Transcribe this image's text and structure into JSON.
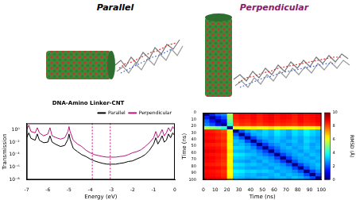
{
  "panels": {
    "left_title": "Parallel",
    "right_title": "Perpendicular"
  },
  "chart_data": [
    {
      "type": "line",
      "title": "DNA-Amino Linker-CNT",
      "x_label": "Energy (eV)",
      "y_label": "Transmission",
      "x": [
        -7,
        -6.9,
        -6.8,
        -6.6,
        -6.5,
        -6.4,
        -6.2,
        -6.0,
        -5.9,
        -5.8,
        -5.6,
        -5.4,
        -5.2,
        -5.05,
        -5.0,
        -4.95,
        -4.8,
        -4.6,
        -4.4,
        -4.2,
        -4.0,
        -3.8,
        -3.6,
        -3.4,
        -3.2,
        -3.0,
        -2.8,
        -2.6,
        -2.4,
        -2.2,
        -2.0,
        -1.8,
        -1.6,
        -1.4,
        -1.2,
        -1.0,
        -0.9,
        -0.8,
        -0.7,
        -0.6,
        -0.5,
        -0.4,
        -0.3,
        -0.2,
        -0.1,
        0
      ],
      "series": [
        {
          "name": "Parallel",
          "color": "#000000",
          "values": [
            0.05,
            0.3,
            0.04,
            0.02,
            0.2,
            0.02,
            0.008,
            0.01,
            0.1,
            0.01,
            0.004,
            0.002,
            0.003,
            0.03,
            0.2,
            0.03,
            0.001,
            0.0003,
            0.0001,
            5e-05,
            2e-05,
            1e-05,
            6e-06,
            4e-06,
            3e-06,
            3e-06,
            3e-06,
            4e-06,
            5e-06,
            8e-06,
            1e-05,
            2e-05,
            4e-05,
            0.0001,
            0.0005,
            0.005,
            0.05,
            0.005,
            0.02,
            0.1,
            0.01,
            0.02,
            0.2,
            0.05,
            0.3,
            0.1
          ]
        },
        {
          "name": "Perpendicular",
          "color": "#b5177a",
          "values": [
            1,
            5,
            0.5,
            0.3,
            2,
            0.3,
            0.1,
            0.2,
            2,
            0.1,
            0.05,
            0.03,
            0.05,
            0.5,
            3,
            0.5,
            0.02,
            0.005,
            0.002,
            0.0005,
            0.0002,
            0.0001,
            7e-05,
            5e-05,
            4e-05,
            4e-05,
            4e-05,
            5e-05,
            6e-05,
            0.0001,
            0.0002,
            0.0003,
            0.0006,
            0.002,
            0.008,
            0.05,
            0.5,
            0.05,
            0.2,
            1,
            0.1,
            0.3,
            2,
            0.5,
            3,
            1
          ]
        }
      ],
      "xlim": [
        -7,
        0
      ],
      "xticks": [
        -7,
        -6,
        -5,
        -4,
        -3,
        -2,
        -1,
        0
      ],
      "ylim": [
        1e-08,
        10
      ],
      "yticks": [
        {
          "value": 1e-08,
          "label": "10⁻⁸"
        },
        {
          "value": 1e-06,
          "label": "10⁻⁶"
        },
        {
          "value": 0.0001,
          "label": "10⁻⁴"
        },
        {
          "value": 0.01,
          "label": "10⁻²"
        },
        {
          "value": 1,
          "label": "10⁰"
        }
      ],
      "log": "y",
      "grid": false,
      "legend": "upper right",
      "vlines": [
        -3.9,
        -3.05
      ]
    },
    {
      "type": "heatmap",
      "x_label": "Time (ns)",
      "y_label": "Time (ns)",
      "x_bins": [
        0,
        5,
        10,
        15,
        20,
        25,
        30,
        35,
        40,
        45,
        50,
        55,
        60,
        65,
        70,
        75,
        80,
        85,
        90,
        95,
        100
      ],
      "y_bins": [
        0,
        5,
        10,
        15,
        20,
        25,
        30,
        35,
        40,
        45,
        50,
        55,
        60,
        65,
        70,
        75,
        80,
        85,
        90,
        95,
        100
      ],
      "cells": [
        [
          0,
          1.5,
          2.2,
          2.5,
          5.5,
          8.6,
          8.8,
          8.7,
          8.9,
          8.6,
          8.8,
          9.0,
          8.7,
          8.9,
          8.8,
          8.6,
          8.9,
          8.7,
          8.8,
          9.0
        ],
        [
          1.5,
          0,
          1.4,
          2.0,
          5.2,
          8.5,
          8.7,
          8.6,
          8.8,
          8.5,
          8.7,
          8.9,
          8.6,
          8.8,
          8.7,
          8.5,
          8.8,
          8.6,
          8.7,
          8.9
        ],
        [
          2.2,
          1.4,
          0,
          1.3,
          4.8,
          8.3,
          8.5,
          8.4,
          8.6,
          8.4,
          8.6,
          8.7,
          8.5,
          8.6,
          8.5,
          8.4,
          8.7,
          8.5,
          8.6,
          8.8
        ],
        [
          2.5,
          2.0,
          1.3,
          0,
          4.2,
          8.0,
          8.3,
          8.2,
          8.4,
          8.2,
          8.4,
          8.5,
          8.3,
          8.4,
          8.3,
          8.2,
          8.5,
          8.3,
          8.4,
          8.6
        ],
        [
          5.5,
          5.2,
          4.8,
          4.2,
          0,
          6.0,
          6.3,
          6.2,
          6.4,
          6.1,
          6.3,
          6.5,
          6.2,
          6.4,
          6.3,
          6.1,
          6.4,
          6.2,
          6.3,
          6.5
        ],
        [
          8.6,
          8.5,
          8.3,
          8.0,
          6.0,
          0,
          2.1,
          2.8,
          3.2,
          3.0,
          3.4,
          3.1,
          3.6,
          3.3,
          3.0,
          3.5,
          3.2,
          3.7,
          3.4,
          3.1
        ],
        [
          8.8,
          8.7,
          8.5,
          8.3,
          6.3,
          2.1,
          0,
          2.0,
          2.9,
          3.1,
          3.3,
          3.0,
          3.5,
          3.2,
          2.9,
          3.4,
          3.1,
          3.6,
          3.3,
          3.0
        ],
        [
          8.7,
          8.6,
          8.4,
          8.2,
          6.2,
          2.8,
          2.0,
          0,
          1.9,
          2.7,
          3.0,
          2.8,
          3.2,
          3.0,
          2.7,
          3.1,
          2.9,
          3.3,
          3.0,
          2.8
        ],
        [
          8.9,
          8.8,
          8.6,
          8.4,
          6.4,
          3.2,
          2.9,
          1.9,
          0,
          2.0,
          2.6,
          2.9,
          3.1,
          2.8,
          3.0,
          3.2,
          2.8,
          3.4,
          3.1,
          2.9
        ],
        [
          8.6,
          8.5,
          8.4,
          8.2,
          6.1,
          3.0,
          3.1,
          2.7,
          2.0,
          0,
          1.8,
          2.5,
          2.8,
          3.0,
          2.7,
          3.0,
          2.9,
          3.2,
          2.8,
          3.0
        ],
        [
          8.8,
          8.7,
          8.6,
          8.4,
          6.3,
          3.4,
          3.3,
          3.0,
          2.6,
          1.8,
          0,
          1.9,
          2.4,
          2.9,
          3.1,
          2.8,
          3.0,
          3.3,
          2.9,
          3.1
        ],
        [
          9.0,
          8.9,
          8.7,
          8.5,
          6.5,
          3.1,
          3.0,
          2.8,
          2.9,
          2.5,
          1.9,
          0,
          2.0,
          2.6,
          2.8,
          3.0,
          2.7,
          3.1,
          3.0,
          2.8
        ],
        [
          8.7,
          8.6,
          8.5,
          8.3,
          6.2,
          3.6,
          3.5,
          3.2,
          3.1,
          2.8,
          2.4,
          2.0,
          0,
          1.9,
          2.5,
          2.9,
          3.1,
          2.8,
          3.2,
          3.0
        ],
        [
          8.9,
          8.8,
          8.6,
          8.4,
          6.4,
          3.3,
          3.2,
          3.0,
          2.8,
          3.0,
          2.9,
          2.6,
          1.9,
          0,
          1.8,
          2.6,
          2.9,
          3.0,
          2.8,
          3.1
        ],
        [
          8.8,
          8.7,
          8.5,
          8.3,
          6.3,
          3.0,
          2.9,
          2.7,
          3.0,
          2.7,
          3.1,
          2.8,
          2.5,
          1.8,
          0,
          2.0,
          2.7,
          2.9,
          3.1,
          2.9
        ],
        [
          8.6,
          8.5,
          8.4,
          8.2,
          6.1,
          3.5,
          3.4,
          3.1,
          3.2,
          3.0,
          2.8,
          3.0,
          2.9,
          2.6,
          2.0,
          0,
          1.9,
          2.6,
          2.9,
          3.2
        ],
        [
          8.9,
          8.8,
          8.7,
          8.5,
          6.4,
          3.2,
          3.1,
          2.9,
          2.8,
          2.9,
          3.0,
          2.7,
          3.1,
          2.9,
          2.7,
          1.9,
          0,
          2.0,
          2.7,
          3.0
        ],
        [
          8.7,
          8.6,
          8.5,
          8.3,
          6.2,
          3.7,
          3.6,
          3.3,
          3.4,
          3.2,
          3.3,
          3.1,
          2.8,
          3.0,
          2.9,
          2.6,
          2.0,
          0,
          1.9,
          2.6
        ],
        [
          8.8,
          8.7,
          8.6,
          8.4,
          6.3,
          3.4,
          3.3,
          3.0,
          3.1,
          2.8,
          2.9,
          3.0,
          3.2,
          2.8,
          3.1,
          2.9,
          2.7,
          1.9,
          0,
          2.0
        ],
        [
          9.0,
          8.9,
          8.8,
          8.6,
          6.5,
          3.1,
          3.0,
          2.8,
          2.9,
          3.0,
          3.1,
          2.8,
          3.0,
          3.1,
          2.9,
          3.2,
          3.0,
          2.6,
          2.0,
          0
        ]
      ],
      "xlim": [
        0,
        100
      ],
      "xticks": [
        0,
        10,
        20,
        30,
        40,
        50,
        60,
        70,
        80,
        90,
        100
      ],
      "ylim": [
        0,
        100
      ],
      "yticks": [
        0,
        10,
        20,
        30,
        40,
        50,
        60,
        70,
        80,
        90,
        100
      ],
      "colorbar": {
        "label": "RMSD (Å)",
        "range": [
          0,
          10
        ],
        "ticks": [
          0,
          2,
          4,
          6,
          8,
          10
        ]
      }
    }
  ]
}
